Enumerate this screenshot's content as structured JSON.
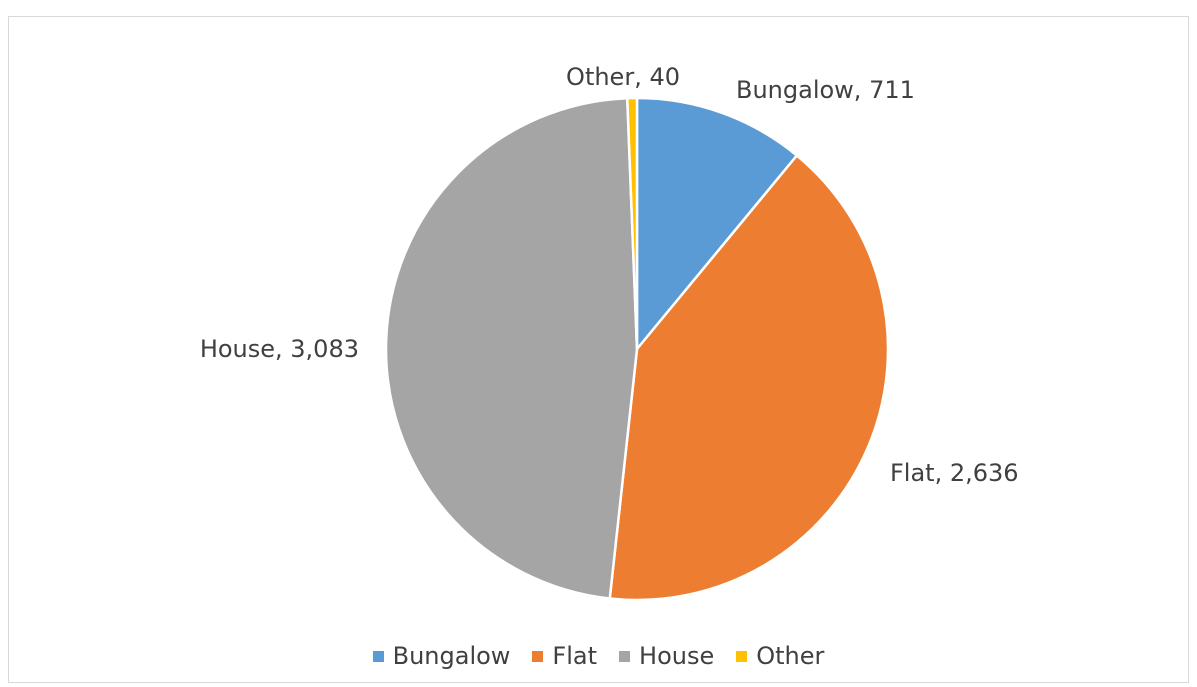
{
  "chart_data": {
    "type": "pie",
    "title": "",
    "categories": [
      "Bungalow",
      "Flat",
      "House",
      "Other"
    ],
    "values": [
      711,
      2636,
      3083,
      40
    ],
    "value_labels": [
      "711",
      "2,636",
      "3,083",
      "40"
    ],
    "colors": [
      "#5b9bd5",
      "#ed7d31",
      "#a5a5a5",
      "#ffc000"
    ],
    "start_angle_deg": 0,
    "direction": "clockwise",
    "legend_position": "bottom",
    "data_labels": "category, value"
  }
}
